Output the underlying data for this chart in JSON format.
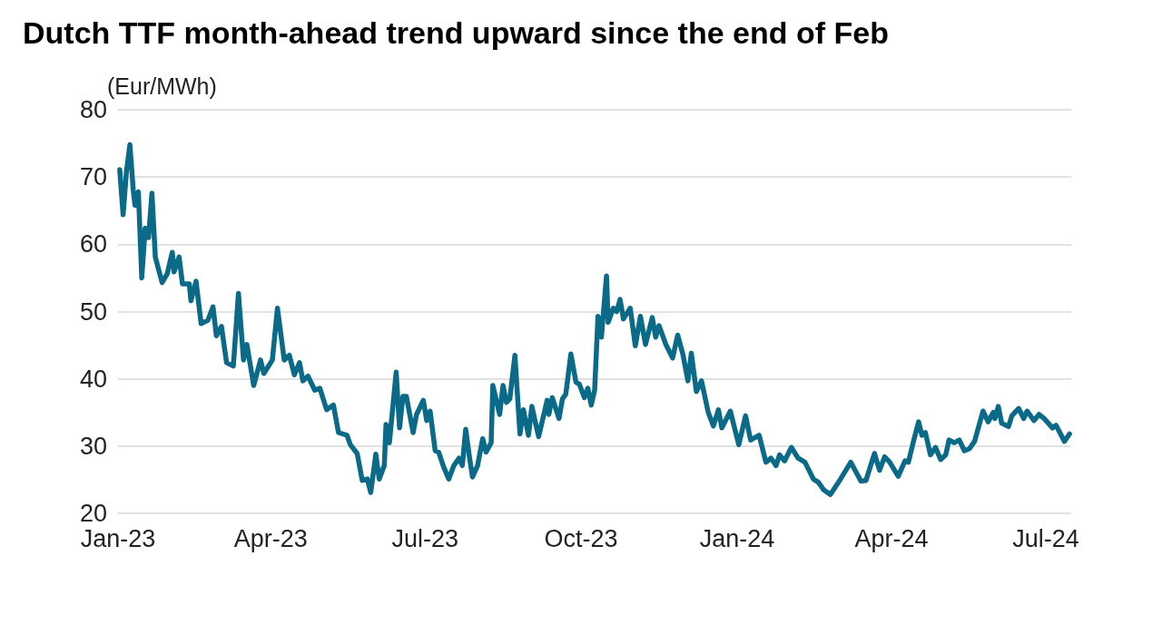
{
  "chart_data": {
    "type": "line",
    "title": "Dutch TTF month-ahead trend upward since the end of Feb",
    "ylabel": "(Eur/MWh)",
    "x": [
      "2023-01-02",
      "2023-01-04",
      "2023-01-06",
      "2023-01-08",
      "2023-01-10",
      "2023-01-11",
      "2023-01-13",
      "2023-01-15",
      "2023-01-17",
      "2023-01-19",
      "2023-01-21",
      "2023-01-23",
      "2023-01-27",
      "2023-01-30",
      "2023-02-02",
      "2023-02-03",
      "2023-02-06",
      "2023-02-08",
      "2023-02-12",
      "2023-02-13",
      "2023-02-16",
      "2023-02-19",
      "2023-02-23",
      "2023-02-26",
      "2023-02-28",
      "2023-03-03",
      "2023-03-06",
      "2023-03-10",
      "2023-03-13",
      "2023-03-16",
      "2023-03-18",
      "2023-03-22",
      "2023-03-26",
      "2023-03-28",
      "2023-04-02",
      "2023-04-05",
      "2023-04-09",
      "2023-04-12",
      "2023-04-15",
      "2023-04-18",
      "2023-04-20",
      "2023-04-23",
      "2023-04-27",
      "2023-04-30",
      "2023-05-04",
      "2023-05-08",
      "2023-05-11",
      "2023-05-16",
      "2023-05-18",
      "2023-05-22",
      "2023-05-25",
      "2023-05-28",
      "2023-05-30",
      "2023-06-02",
      "2023-06-04",
      "2023-06-07",
      "2023-06-08",
      "2023-06-10",
      "2023-06-14",
      "2023-06-16",
      "2023-06-18",
      "2023-06-20",
      "2023-06-24",
      "2023-06-26",
      "2023-06-30",
      "2023-07-02",
      "2023-07-04",
      "2023-07-07",
      "2023-07-09",
      "2023-07-12",
      "2023-07-15",
      "2023-07-18",
      "2023-07-21",
      "2023-07-23",
      "2023-07-25",
      "2023-07-27",
      "2023-07-29",
      "2023-08-01",
      "2023-08-04",
      "2023-08-06",
      "2023-08-09",
      "2023-08-10",
      "2023-08-14",
      "2023-08-16",
      "2023-08-18",
      "2023-08-20",
      "2023-08-23",
      "2023-08-26",
      "2023-08-28",
      "2023-08-31",
      "2023-09-02",
      "2023-09-04",
      "2023-09-06",
      "2023-09-11",
      "2023-09-12",
      "2023-09-14",
      "2023-09-18",
      "2023-09-20",
      "2023-09-22",
      "2023-09-25",
      "2023-09-28",
      "2023-09-30",
      "2023-10-03",
      "2023-10-05",
      "2023-10-07",
      "2023-10-09",
      "2023-10-11",
      "2023-10-13",
      "2023-10-16",
      "2023-10-17",
      "2023-10-20",
      "2023-10-22",
      "2023-10-24",
      "2023-10-26",
      "2023-10-30",
      "2023-11-02",
      "2023-11-05",
      "2023-11-08",
      "2023-11-12",
      "2023-11-14",
      "2023-11-16",
      "2023-11-20",
      "2023-11-24",
      "2023-11-27",
      "2023-11-30",
      "2023-12-03",
      "2023-12-05",
      "2023-12-08",
      "2023-12-11",
      "2023-12-15",
      "2023-12-18",
      "2023-12-21",
      "2023-12-23",
      "2023-12-28",
      "2024-01-02",
      "2024-01-06",
      "2024-01-09",
      "2024-01-14",
      "2024-01-18",
      "2024-01-21",
      "2024-01-24",
      "2024-01-26",
      "2024-01-29",
      "2024-02-02",
      "2024-02-06",
      "2024-02-10",
      "2024-02-15",
      "2024-02-18",
      "2024-02-21",
      "2024-02-25",
      "2024-03-02",
      "2024-03-08",
      "2024-03-11",
      "2024-03-14",
      "2024-03-17",
      "2024-03-22",
      "2024-03-25",
      "2024-03-28",
      "2024-03-31",
      "2024-04-05",
      "2024-04-09",
      "2024-04-11",
      "2024-04-14",
      "2024-04-17",
      "2024-04-19",
      "2024-04-21",
      "2024-04-24",
      "2024-04-27",
      "2024-04-30",
      "2024-05-03",
      "2024-05-05",
      "2024-05-08",
      "2024-05-11",
      "2024-05-14",
      "2024-05-17",
      "2024-05-20",
      "2024-05-25",
      "2024-05-28",
      "2024-05-31",
      "2024-06-01",
      "2024-06-03",
      "2024-06-05",
      "2024-06-09",
      "2024-06-11",
      "2024-06-15",
      "2024-06-18",
      "2024-06-20",
      "2024-06-24",
      "2024-06-27",
      "2024-06-30",
      "2024-07-05",
      "2024-07-07",
      "2024-07-12",
      "2024-07-15"
    ],
    "series": [
      {
        "color": "#0b6a87",
        "values": [
          71.1,
          64.4,
          70.9,
          74.8,
          68,
          65.8,
          67.8,
          55,
          62.4,
          61,
          67.6,
          58.1,
          54.3,
          55.6,
          58.8,
          55.9,
          58.1,
          54.1,
          54.1,
          51.6,
          54.5,
          48.2,
          48.7,
          50.7,
          46.4,
          47.8,
          42.4,
          41.9,
          52.7,
          42.8,
          45.1,
          39,
          42.8,
          40.8,
          42.8,
          50.5,
          42.8,
          43.5,
          40.6,
          42.4,
          39.7,
          40.4,
          38.3,
          38.6,
          35.4,
          36.1,
          32,
          31.6,
          30.2,
          28.9,
          24.9,
          25.1,
          23.1,
          28.8,
          25.1,
          27.1,
          33.2,
          30.5,
          41,
          32.7,
          37.4,
          37.4,
          32,
          34.7,
          36.8,
          33.8,
          35.2,
          29.3,
          29.1,
          26.9,
          25.1,
          27.1,
          28.2,
          27.1,
          32.5,
          28.7,
          25.4,
          27.1,
          31.1,
          29.1,
          30.5,
          39,
          34.7,
          39,
          36.5,
          37,
          43.5,
          31.8,
          35.4,
          31.6,
          35.9,
          33.6,
          31.4,
          36.8,
          34.7,
          37.2,
          34.1,
          37,
          37.7,
          43.7,
          39.5,
          39.2,
          37.2,
          38.6,
          36.1,
          38.3,
          49.3,
          46.2,
          55.3,
          48.4,
          50.5,
          50,
          51.8,
          48.9,
          50.5,
          44.9,
          49.3,
          45.1,
          49.1,
          46.2,
          47.9,
          45.1,
          43.1,
          46.5,
          43.7,
          39.7,
          43.8,
          38.1,
          39.7,
          35,
          33,
          35.4,
          32.7,
          35.2,
          30.2,
          34.5,
          30.9,
          31.6,
          27.6,
          28.2,
          27.1,
          28.7,
          27.8,
          29.8,
          28.2,
          27.6,
          25.1,
          24.6,
          23.5,
          22.8,
          25.1,
          27.6,
          26.2,
          24.8,
          24.9,
          28.9,
          26.4,
          28.4,
          27.6,
          25.5,
          27.8,
          27.6,
          30.7,
          33.6,
          31.6,
          32,
          28.7,
          29.8,
          28,
          28.7,
          30.9,
          30.5,
          30.9,
          29.3,
          29.6,
          30.7,
          35.2,
          33.6,
          35,
          34.1,
          35.9,
          33.4,
          32.9,
          34.5,
          35.6,
          34.1,
          35.2,
          33.8,
          34.7,
          34.1,
          32.7,
          33.1,
          30.7,
          31.8
        ]
      }
    ],
    "xlim": [
      "2023-01-01",
      "2024-07-16"
    ],
    "xticks": [
      {
        "value": "2023-01-01",
        "label": "Jan-23"
      },
      {
        "value": "2023-04-01",
        "label": "Apr-23"
      },
      {
        "value": "2023-07-01",
        "label": "Jul-23"
      },
      {
        "value": "2023-10-01",
        "label": "Oct-23"
      },
      {
        "value": "2024-01-01",
        "label": "Jan-24"
      },
      {
        "value": "2024-04-01",
        "label": "Apr-24"
      },
      {
        "value": "2024-07-01",
        "label": "Jul-24"
      }
    ],
    "ylim": [
      20,
      80
    ],
    "yticks": [
      20,
      30,
      40,
      50,
      60,
      70,
      80
    ],
    "grid": "y",
    "marker": "none",
    "line_style": "solid"
  }
}
